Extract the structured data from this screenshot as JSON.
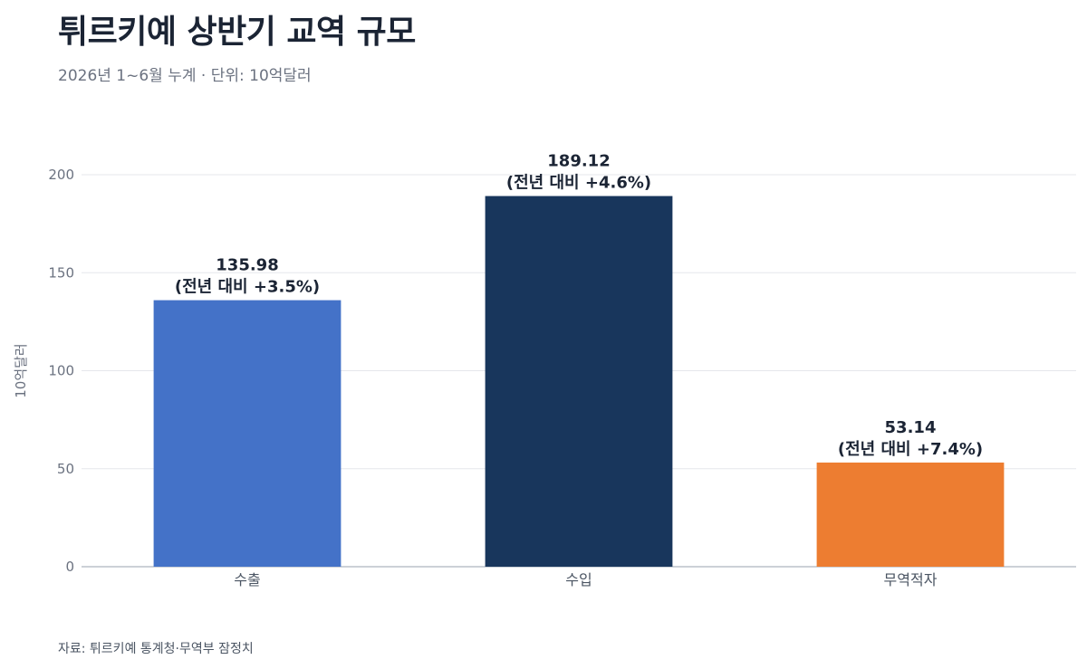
{
  "header": {
    "title": "튀르키예 상반기 교역 규모",
    "subtitle": "2026년 1~6월 누계 · 단위: 10억달러"
  },
  "footer": {
    "source": "자료: 튀르키예 통계청·무역부 잠정치"
  },
  "chart_data": {
    "type": "bar",
    "title": "튀르키예 상반기 교역 규모",
    "xlabel": "",
    "ylabel": "10억달러",
    "ylim": [
      0,
      200
    ],
    "yticks": [
      0,
      50,
      100,
      150,
      200
    ],
    "grid": true,
    "categories": [
      "수출",
      "수입",
      "무역적자"
    ],
    "values": [
      135.98,
      189.12,
      53.14
    ],
    "value_labels": [
      "135.98",
      "189.12",
      "53.14"
    ],
    "change_labels": [
      "(전년 대비 +3.5%)",
      "(전년 대비 +4.6%)",
      "(전년 대비 +7.4%)"
    ],
    "colors": [
      "#4472c8",
      "#18365c",
      "#ed7d31"
    ]
  }
}
